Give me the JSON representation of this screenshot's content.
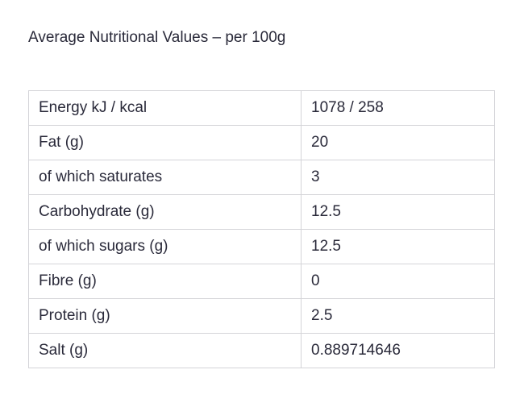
{
  "title": "Average Nutritional Values – per 100g",
  "rows": [
    {
      "label": "Energy kJ / kcal",
      "value": "1078 / 258"
    },
    {
      "label": "Fat (g)",
      "value": "20"
    },
    {
      "label": "of which saturates",
      "value": "3"
    },
    {
      "label": "Carbohydrate (g)",
      "value": "12.5"
    },
    {
      "label": "of which sugars (g)",
      "value": "12.5"
    },
    {
      "label": "Fibre (g)",
      "value": "0"
    },
    {
      "label": "Protein (g)",
      "value": "2.5"
    },
    {
      "label": "Salt (g)",
      "value": "0.889714646"
    }
  ]
}
